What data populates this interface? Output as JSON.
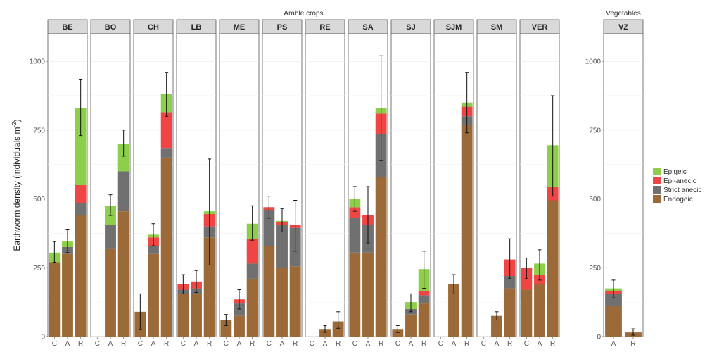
{
  "chart_data": {
    "type": "bar",
    "stacked": true,
    "error_bars": true,
    "ylabel": "Earthworm density (individuals m",
    "ylabel_superscript": "-2",
    "ylim": [
      0,
      1100
    ],
    "yticks": [
      0,
      250,
      500,
      750,
      1000
    ],
    "grid": true,
    "legend_position": "right",
    "series_order": [
      "Endogeic",
      "Strict anecic",
      "Epi-anecic",
      "Epigeic"
    ],
    "legend_order": [
      "Epigeic",
      "Epi-anecic",
      "Strict anecic",
      "Endogeic"
    ],
    "colors": {
      "Epigeic": "#8dcf4a",
      "Epi-anecic": "#f04545",
      "Strict anecic": "#707070",
      "Endogeic": "#9c6a38"
    },
    "groups": [
      {
        "label": "Arable crops",
        "panels": [
          {
            "name": "BE",
            "categories": [
              "C",
              "A",
              "R"
            ],
            "values": {
              "Endogeic": [
                270,
                300,
                440
              ],
              "Strict anecic": [
                0,
                25,
                45
              ],
              "Epi-anecic": [
                0,
                0,
                65
              ],
              "Epigeic": [
                35,
                20,
                280
              ]
            },
            "totals": [
              305,
              345,
              830
            ],
            "errors": [
              [
                270,
                345
              ],
              [
                305,
                390
              ],
              [
                730,
                935
              ]
            ]
          },
          {
            "name": "BO",
            "categories": [
              "C",
              "A",
              "R"
            ],
            "values": {
              "Endogeic": [
                0,
                320,
                455
              ],
              "Strict anecic": [
                0,
                85,
                145
              ],
              "Epi-anecic": [
                0,
                0,
                0
              ],
              "Epigeic": [
                0,
                70,
                100
              ]
            },
            "totals": [
              0,
              475,
              700
            ],
            "errors": [
              null,
              [
                440,
                515
              ],
              [
                655,
                750
              ]
            ]
          },
          {
            "name": "CH",
            "categories": [
              "C",
              "A",
              "R"
            ],
            "values": {
              "Endogeic": [
                90,
                300,
                650
              ],
              "Strict anecic": [
                0,
                30,
                35
              ],
              "Epi-anecic": [
                0,
                30,
                130
              ],
              "Epigeic": [
                0,
                10,
                65
              ]
            },
            "totals": [
              90,
              370,
              880
            ],
            "errors": [
              [
                25,
                155
              ],
              [
                330,
                410
              ],
              [
                800,
                960
              ]
            ]
          },
          {
            "name": "LB",
            "categories": [
              "C",
              "A",
              "R"
            ],
            "values": {
              "Endogeic": [
                155,
                155,
                360
              ],
              "Strict anecic": [
                15,
                20,
                40
              ],
              "Epi-anecic": [
                20,
                25,
                45
              ],
              "Epigeic": [
                0,
                0,
                10
              ]
            },
            "totals": [
              190,
              200,
              455
            ],
            "errors": [
              [
                155,
                225
              ],
              [
                160,
                240
              ],
              [
                260,
                645
              ]
            ]
          },
          {
            "name": "ME",
            "categories": [
              "C",
              "A",
              "R"
            ],
            "values": {
              "Endogeic": [
                60,
                75,
                210
              ],
              "Strict anecic": [
                0,
                45,
                55
              ],
              "Epi-anecic": [
                0,
                15,
                90
              ],
              "Epigeic": [
                0,
                0,
                55
              ]
            },
            "totals": [
              60,
              135,
              410
            ],
            "errors": [
              [
                40,
                80
              ],
              [
                100,
                170
              ],
              [
                350,
                475
              ]
            ]
          },
          {
            "name": "PS",
            "categories": [
              "C",
              "A",
              "R"
            ],
            "values": {
              "Endogeic": [
                330,
                250,
                255
              ],
              "Strict anecic": [
                130,
                155,
                140
              ],
              "Epi-anecic": [
                10,
                10,
                10
              ],
              "Epigeic": [
                0,
                5,
                0
              ]
            },
            "totals": [
              470,
              420,
              405
            ],
            "errors": [
              [
                430,
                510
              ],
              [
                380,
                465
              ],
              [
                310,
                495
              ]
            ]
          },
          {
            "name": "RE",
            "categories": [
              "C",
              "A",
              "R"
            ],
            "values": {
              "Endogeic": [
                0,
                25,
                55
              ],
              "Strict anecic": [
                0,
                0,
                0
              ],
              "Epi-anecic": [
                0,
                0,
                0
              ],
              "Epigeic": [
                0,
                0,
                0
              ]
            },
            "totals": [
              0,
              25,
              55
            ],
            "errors": [
              null,
              [
                15,
                40
              ],
              [
                30,
                90
              ]
            ]
          },
          {
            "name": "SA",
            "categories": [
              "C",
              "A",
              "R"
            ],
            "values": {
              "Endogeic": [
                305,
                305,
                580
              ],
              "Strict anecic": [
                125,
                100,
                155
              ],
              "Epi-anecic": [
                40,
                35,
                75
              ],
              "Epigeic": [
                30,
                0,
                20
              ]
            },
            "totals": [
              500,
              440,
              830
            ],
            "errors": [
              [
                455,
                545
              ],
              [
                340,
                545
              ],
              [
                640,
                1020
              ]
            ]
          },
          {
            "name": "SJ",
            "categories": [
              "C",
              "A",
              "R"
            ],
            "values": {
              "Endogeic": [
                25,
                80,
                120
              ],
              "Strict anecic": [
                0,
                20,
                30
              ],
              "Epi-anecic": [
                0,
                0,
                15
              ],
              "Epigeic": [
                0,
                25,
                80
              ]
            },
            "totals": [
              25,
              125,
              245
            ],
            "errors": [
              [
                15,
                40
              ],
              [
                90,
                155
              ],
              [
                175,
                310
              ]
            ]
          },
          {
            "name": "SJM",
            "categories": [
              "C",
              "A",
              "R"
            ],
            "values": {
              "Endogeic": [
                0,
                190,
                770
              ],
              "Strict anecic": [
                0,
                0,
                30
              ],
              "Epi-anecic": [
                0,
                0,
                35
              ],
              "Epigeic": [
                0,
                0,
                15
              ]
            },
            "totals": [
              0,
              190,
              850
            ],
            "errors": [
              null,
              [
                155,
                225
              ],
              [
                740,
                960
              ]
            ]
          },
          {
            "name": "SM",
            "categories": [
              "C",
              "A",
              "R"
            ],
            "values": {
              "Endogeic": [
                0,
                75,
                175
              ],
              "Strict anecic": [
                0,
                0,
                45
              ],
              "Epi-anecic": [
                0,
                0,
                60
              ],
              "Epigeic": [
                0,
                0,
                0
              ]
            },
            "totals": [
              0,
              75,
              280
            ],
            "errors": [
              null,
              [
                60,
                90
              ],
              [
                210,
                355
              ]
            ]
          },
          {
            "name": "VER",
            "categories": [
              "C",
              "A",
              "R"
            ],
            "values": {
              "Endogeic": [
                170,
                190,
                495
              ],
              "Strict anecic": [
                0,
                0,
                0
              ],
              "Epi-anecic": [
                80,
                35,
                50
              ],
              "Epigeic": [
                0,
                40,
                150
              ]
            },
            "totals": [
              250,
              265,
              695
            ],
            "errors": [
              [
                210,
                285
              ],
              [
                205,
                315
              ],
              [
                510,
                875
              ]
            ]
          }
        ]
      },
      {
        "label": "Vegetables",
        "panels": [
          {
            "name": "VZ",
            "categories": [
              "A",
              "R"
            ],
            "values": {
              "Endogeic": [
                110,
                15
              ],
              "Strict anecic": [
                45,
                0
              ],
              "Epi-anecic": [
                10,
                0
              ],
              "Epigeic": [
                10,
                0
              ]
            },
            "totals": [
              175,
              15
            ],
            "errors": [
              [
                140,
                205
              ],
              [
                5,
                28
              ]
            ]
          }
        ]
      }
    ]
  }
}
